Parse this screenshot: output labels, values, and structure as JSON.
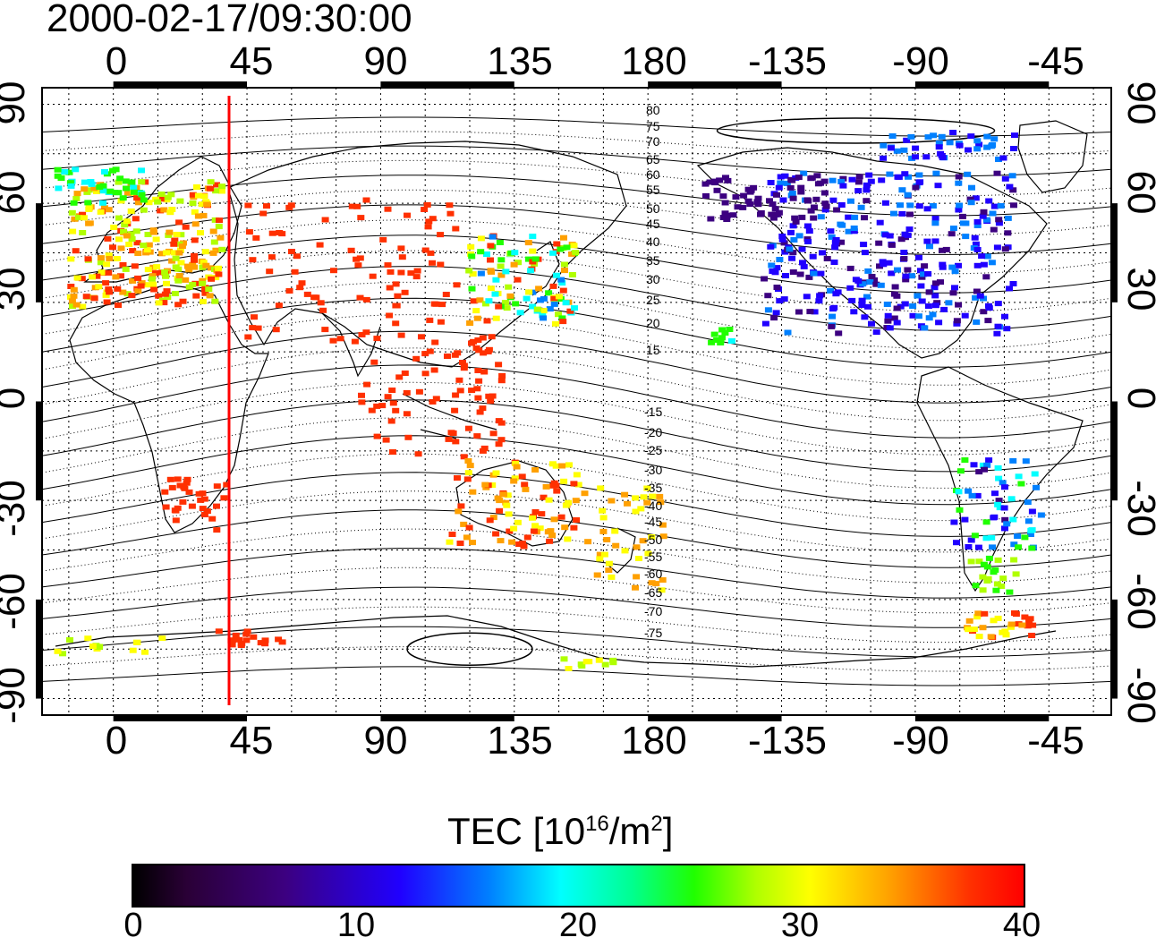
{
  "title": "2000-02-17/09:30:00",
  "x_ticks": [
    "0",
    "45",
    "90",
    "135",
    "180",
    "-135",
    "-90",
    "-45"
  ],
  "y_ticks": [
    "90",
    "60",
    "30",
    "0",
    "-30",
    "-60",
    "-90"
  ],
  "contour_labels_north": [
    "80",
    "75",
    "70",
    "65",
    "60",
    "55",
    "50",
    "45",
    "40",
    "35",
    "30",
    "25",
    "20",
    "15"
  ],
  "contour_labels_south": [
    "-15",
    "-20",
    "-25",
    "-30",
    "-35",
    "-40",
    "-45",
    "-50",
    "-55",
    "-60",
    "-65",
    "-70",
    "-75"
  ],
  "colorbar": {
    "label_main": "TEC  [10",
    "label_exp1": "16",
    "label_mid": "/m",
    "label_exp2": "2",
    "label_end": "]",
    "ticks": [
      "0",
      "10",
      "20",
      "30",
      "40"
    ],
    "colors": [
      "#000000",
      "#3c0080",
      "#2000ff",
      "#00ffff",
      "#20ff00",
      "#ffff00",
      "#ff0000"
    ]
  },
  "map": {
    "projection": "equirectangular",
    "lon_range": [
      -24,
      336
    ],
    "lat_range": [
      -95,
      95
    ],
    "grid": "dotted",
    "coastlines": true,
    "marker_longitude": 37,
    "marker_color": "#ff0000"
  }
}
